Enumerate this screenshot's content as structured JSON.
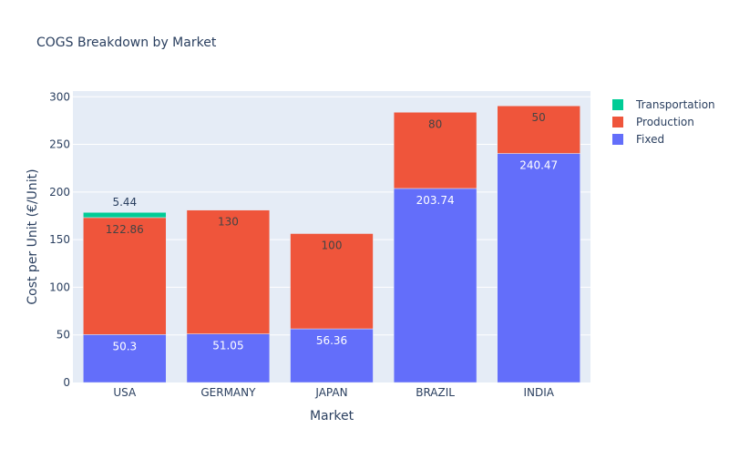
{
  "chart_data": {
    "type": "bar",
    "barmode": "stack",
    "title": "COGS Breakdown by Market",
    "xlabel": "Market",
    "ylabel": "Cost per Unit (€/Unit)",
    "categories": [
      "USA",
      "GERMANY",
      "JAPAN",
      "BRAZIL",
      "INDIA"
    ],
    "series": [
      {
        "name": "Fixed",
        "color": "#636efa",
        "values": [
          50.3,
          51.05,
          56.36,
          203.74,
          240.47
        ],
        "labels": [
          "50.3",
          "51.05",
          "56.36",
          "203.74",
          "240.47"
        ]
      },
      {
        "name": "Production",
        "color": "#ef553b",
        "values": [
          122.86,
          130,
          100,
          80,
          50
        ],
        "labels": [
          "122.86",
          "130",
          "100",
          "80",
          "50"
        ]
      },
      {
        "name": "Transportation",
        "color": "#00cc96",
        "values": [
          5.44,
          null,
          null,
          null,
          null
        ],
        "labels": [
          "5.44",
          "",
          "",
          "",
          ""
        ]
      }
    ],
    "ylim": [
      0,
      306
    ],
    "yticks": [
      0,
      50,
      100,
      150,
      200,
      250,
      300
    ],
    "grid": true,
    "legend": {
      "placement": "top-right",
      "order": [
        "Transportation",
        "Production",
        "Fixed"
      ]
    }
  }
}
